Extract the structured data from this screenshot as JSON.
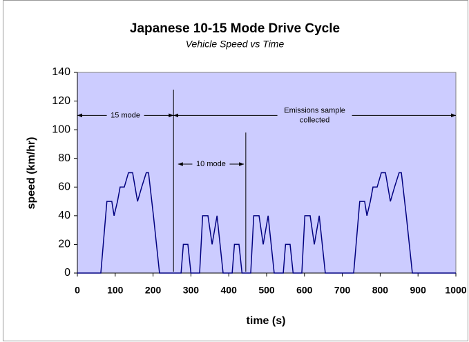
{
  "chart_data": {
    "type": "line",
    "title": "Japanese 10-15 Mode Drive Cycle",
    "subtitle": "Vehicle Speed vs Time",
    "x_label": "time (s)",
    "y_label": "speed (km/hr)",
    "xlim": [
      0,
      1000
    ],
    "ylim": [
      0,
      140
    ],
    "xticks": [
      0,
      100,
      200,
      300,
      400,
      500,
      600,
      700,
      800,
      900,
      1000
    ],
    "yticks": [
      0,
      20,
      40,
      60,
      80,
      100,
      120,
      140
    ],
    "grid": false,
    "series": [
      {
        "color": "#000080",
        "x": [
          0,
          62,
          78,
          91,
          97,
          106,
          113,
          124,
          135,
          146,
          159,
          170,
          182,
          188,
          201,
          217,
          274,
          280,
          292,
          300,
          323,
          331,
          345,
          356,
          369,
          385,
          409,
          415,
          427,
          435,
          458,
          466,
          480,
          491,
          504,
          520,
          544,
          550,
          562,
          570,
          593,
          601,
          615,
          626,
          639,
          655,
          730,
          746,
          759,
          765,
          774,
          781,
          792,
          803,
          814,
          827,
          838,
          850,
          856,
          869,
          885,
          1000
        ],
        "values": [
          0,
          0,
          50,
          50,
          40,
          50,
          60,
          60,
          70,
          70,
          50,
          60,
          70,
          70,
          40,
          0,
          0,
          20,
          20,
          0,
          0,
          40,
          40,
          20,
          40,
          0,
          0,
          20,
          20,
          0,
          0,
          40,
          40,
          20,
          40,
          0,
          0,
          20,
          20,
          0,
          0,
          40,
          40,
          20,
          40,
          0,
          0,
          50,
          50,
          40,
          50,
          60,
          60,
          70,
          70,
          50,
          60,
          70,
          70,
          40,
          0,
          0
        ]
      }
    ],
    "annotations": [
      {
        "lines": [
          "15 mode"
        ],
        "x": [
          0,
          254
        ],
        "y": 110
      },
      {
        "lines": [
          "Emissions sample",
          "collected"
        ],
        "x": [
          254,
          1000
        ],
        "y": 110
      },
      {
        "lines": [
          "10 mode"
        ],
        "x": [
          266,
          440
        ],
        "y": 76
      }
    ],
    "vlines": [
      {
        "x": 254,
        "y": 128
      },
      {
        "x": 445,
        "y": 98
      }
    ]
  }
}
